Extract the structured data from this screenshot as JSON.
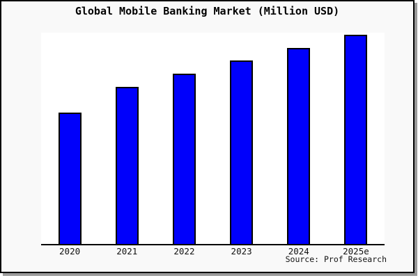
{
  "title": "Global Mobile Banking Market (Million USD)",
  "source_label": "Source: Prof Research",
  "colors": {
    "bar_fill": "#0000fb",
    "bar_border": "#000000",
    "frame_background": "#f9f9f9",
    "plot_background": "#ffffff",
    "axis_line": "#000000",
    "frame_border": "#000000",
    "shadow": "#9a9a9a"
  },
  "chart_data": {
    "type": "bar",
    "title": "Global Mobile Banking Market (Million USD)",
    "categories": [
      "2020",
      "2021",
      "2022",
      "2023",
      "2024",
      "2025e"
    ],
    "values": [
      62.8,
      75.1,
      81.4,
      87.7,
      93.7,
      100
    ],
    "xlabel": "",
    "ylabel": "",
    "ylim": [
      0,
      101
    ],
    "y_axis_visible": false,
    "grid": false,
    "legend": false,
    "note": "Y-axis is unlabeled in the chart; values are relative units estimated from bar heights with 2025e = 100"
  }
}
